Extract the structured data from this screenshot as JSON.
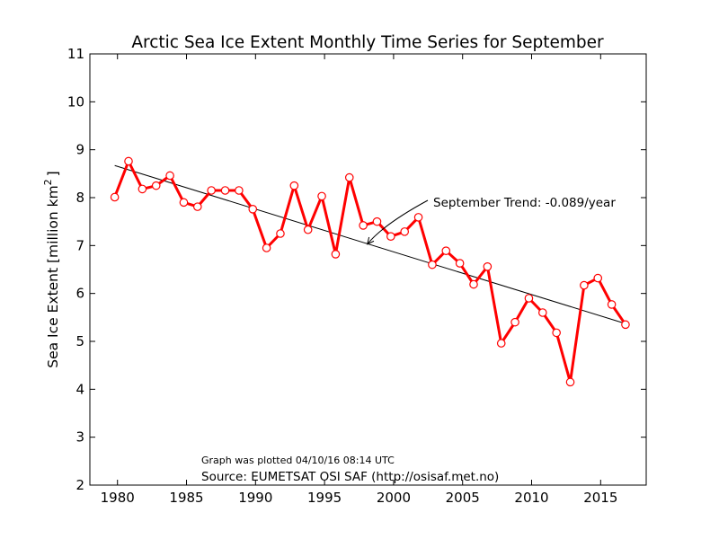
{
  "chart_data": {
    "type": "line",
    "title": "Arctic Sea Ice Extent Monthly Time Series for September",
    "ylabel": "Sea Ice Extent [million km",
    "ylabel_exp": "2",
    "ylabel_close": "]",
    "xlim": [
      1978,
      2018.3
    ],
    "ylim": [
      2,
      11
    ],
    "xticks": [
      1980,
      1985,
      1990,
      1995,
      2000,
      2005,
      2010,
      2015
    ],
    "yticks": [
      2,
      3,
      4,
      5,
      6,
      7,
      8,
      9,
      10,
      11
    ],
    "grid": false,
    "series": [
      {
        "color": "#ff0000",
        "marker_fill": "#ffffff",
        "x": [
          1979.8,
          1980.8,
          1981.8,
          1982.8,
          1983.8,
          1984.8,
          1985.8,
          1986.8,
          1987.8,
          1988.8,
          1989.8,
          1990.8,
          1991.8,
          1992.8,
          1993.8,
          1994.8,
          1995.8,
          1996.8,
          1997.8,
          1998.8,
          1999.8,
          2000.8,
          2001.8,
          2002.8,
          2003.8,
          2004.8,
          2005.8,
          2006.8,
          2007.8,
          2008.8,
          2009.8,
          2010.8,
          2011.8,
          2012.8,
          2013.8,
          2014.8,
          2015.8,
          2016.8
        ],
        "y": [
          8.01,
          8.76,
          8.18,
          8.25,
          8.46,
          7.9,
          7.81,
          8.15,
          8.15,
          8.15,
          7.76,
          6.95,
          7.25,
          8.25,
          7.33,
          8.03,
          6.82,
          8.42,
          7.42,
          7.5,
          7.19,
          7.29,
          7.59,
          6.6,
          6.89,
          6.63,
          6.19,
          6.56,
          4.96,
          5.4,
          5.9,
          5.6,
          5.18,
          4.15,
          6.17,
          6.32,
          5.77,
          5.35
        ]
      }
    ],
    "trend": {
      "color": "#000000",
      "x": [
        1979.8,
        2016.8
      ],
      "y": [
        8.67,
        5.37
      ]
    },
    "annotation": {
      "text": "September Trend: -0.089/year",
      "point": [
        1998.1,
        7.03
      ]
    },
    "footnote": "Graph was plotted 04/10/16 08:14 UTC",
    "source": "Source: EUMETSAT OSI SAF (http://osisaf.met.no)"
  }
}
